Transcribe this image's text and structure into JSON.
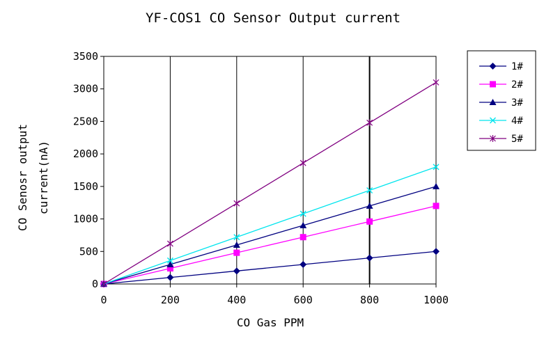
{
  "chart_data": {
    "type": "line",
    "title": "YF-COS1 CO Sensor Output current",
    "xlabel": "CO Gas PPM",
    "ylabel_line1": "CO Senosr output",
    "ylabel_line2": "current(nA)",
    "x": [
      0,
      200,
      400,
      600,
      800,
      1000
    ],
    "xlim": [
      0,
      1000
    ],
    "ylim": [
      0,
      3500
    ],
    "x_ticks": [
      "0",
      "200",
      "400",
      "600",
      "800",
      "1000"
    ],
    "y_ticks": [
      "0",
      "500",
      "1000",
      "1500",
      "2000",
      "2500",
      "3000",
      "3500"
    ],
    "grid": "vertical",
    "legend_position": "right",
    "series": [
      {
        "name": "1#",
        "values": [
          0,
          100,
          200,
          300,
          400,
          500
        ],
        "color": "#000080",
        "marker": "diamond"
      },
      {
        "name": "2#",
        "values": [
          0,
          240,
          480,
          720,
          960,
          1200
        ],
        "color": "#ff00ff",
        "marker": "square"
      },
      {
        "name": "3#",
        "values": [
          0,
          300,
          600,
          900,
          1200,
          1500
        ],
        "color": "#000080",
        "marker": "triangle"
      },
      {
        "name": "4#",
        "values": [
          0,
          360,
          720,
          1080,
          1440,
          1800
        ],
        "color": "#00e5ee",
        "marker": "x"
      },
      {
        "name": "5#",
        "values": [
          0,
          620,
          1240,
          1860,
          2480,
          3100
        ],
        "color": "#800080",
        "marker": "asterisk"
      }
    ]
  }
}
